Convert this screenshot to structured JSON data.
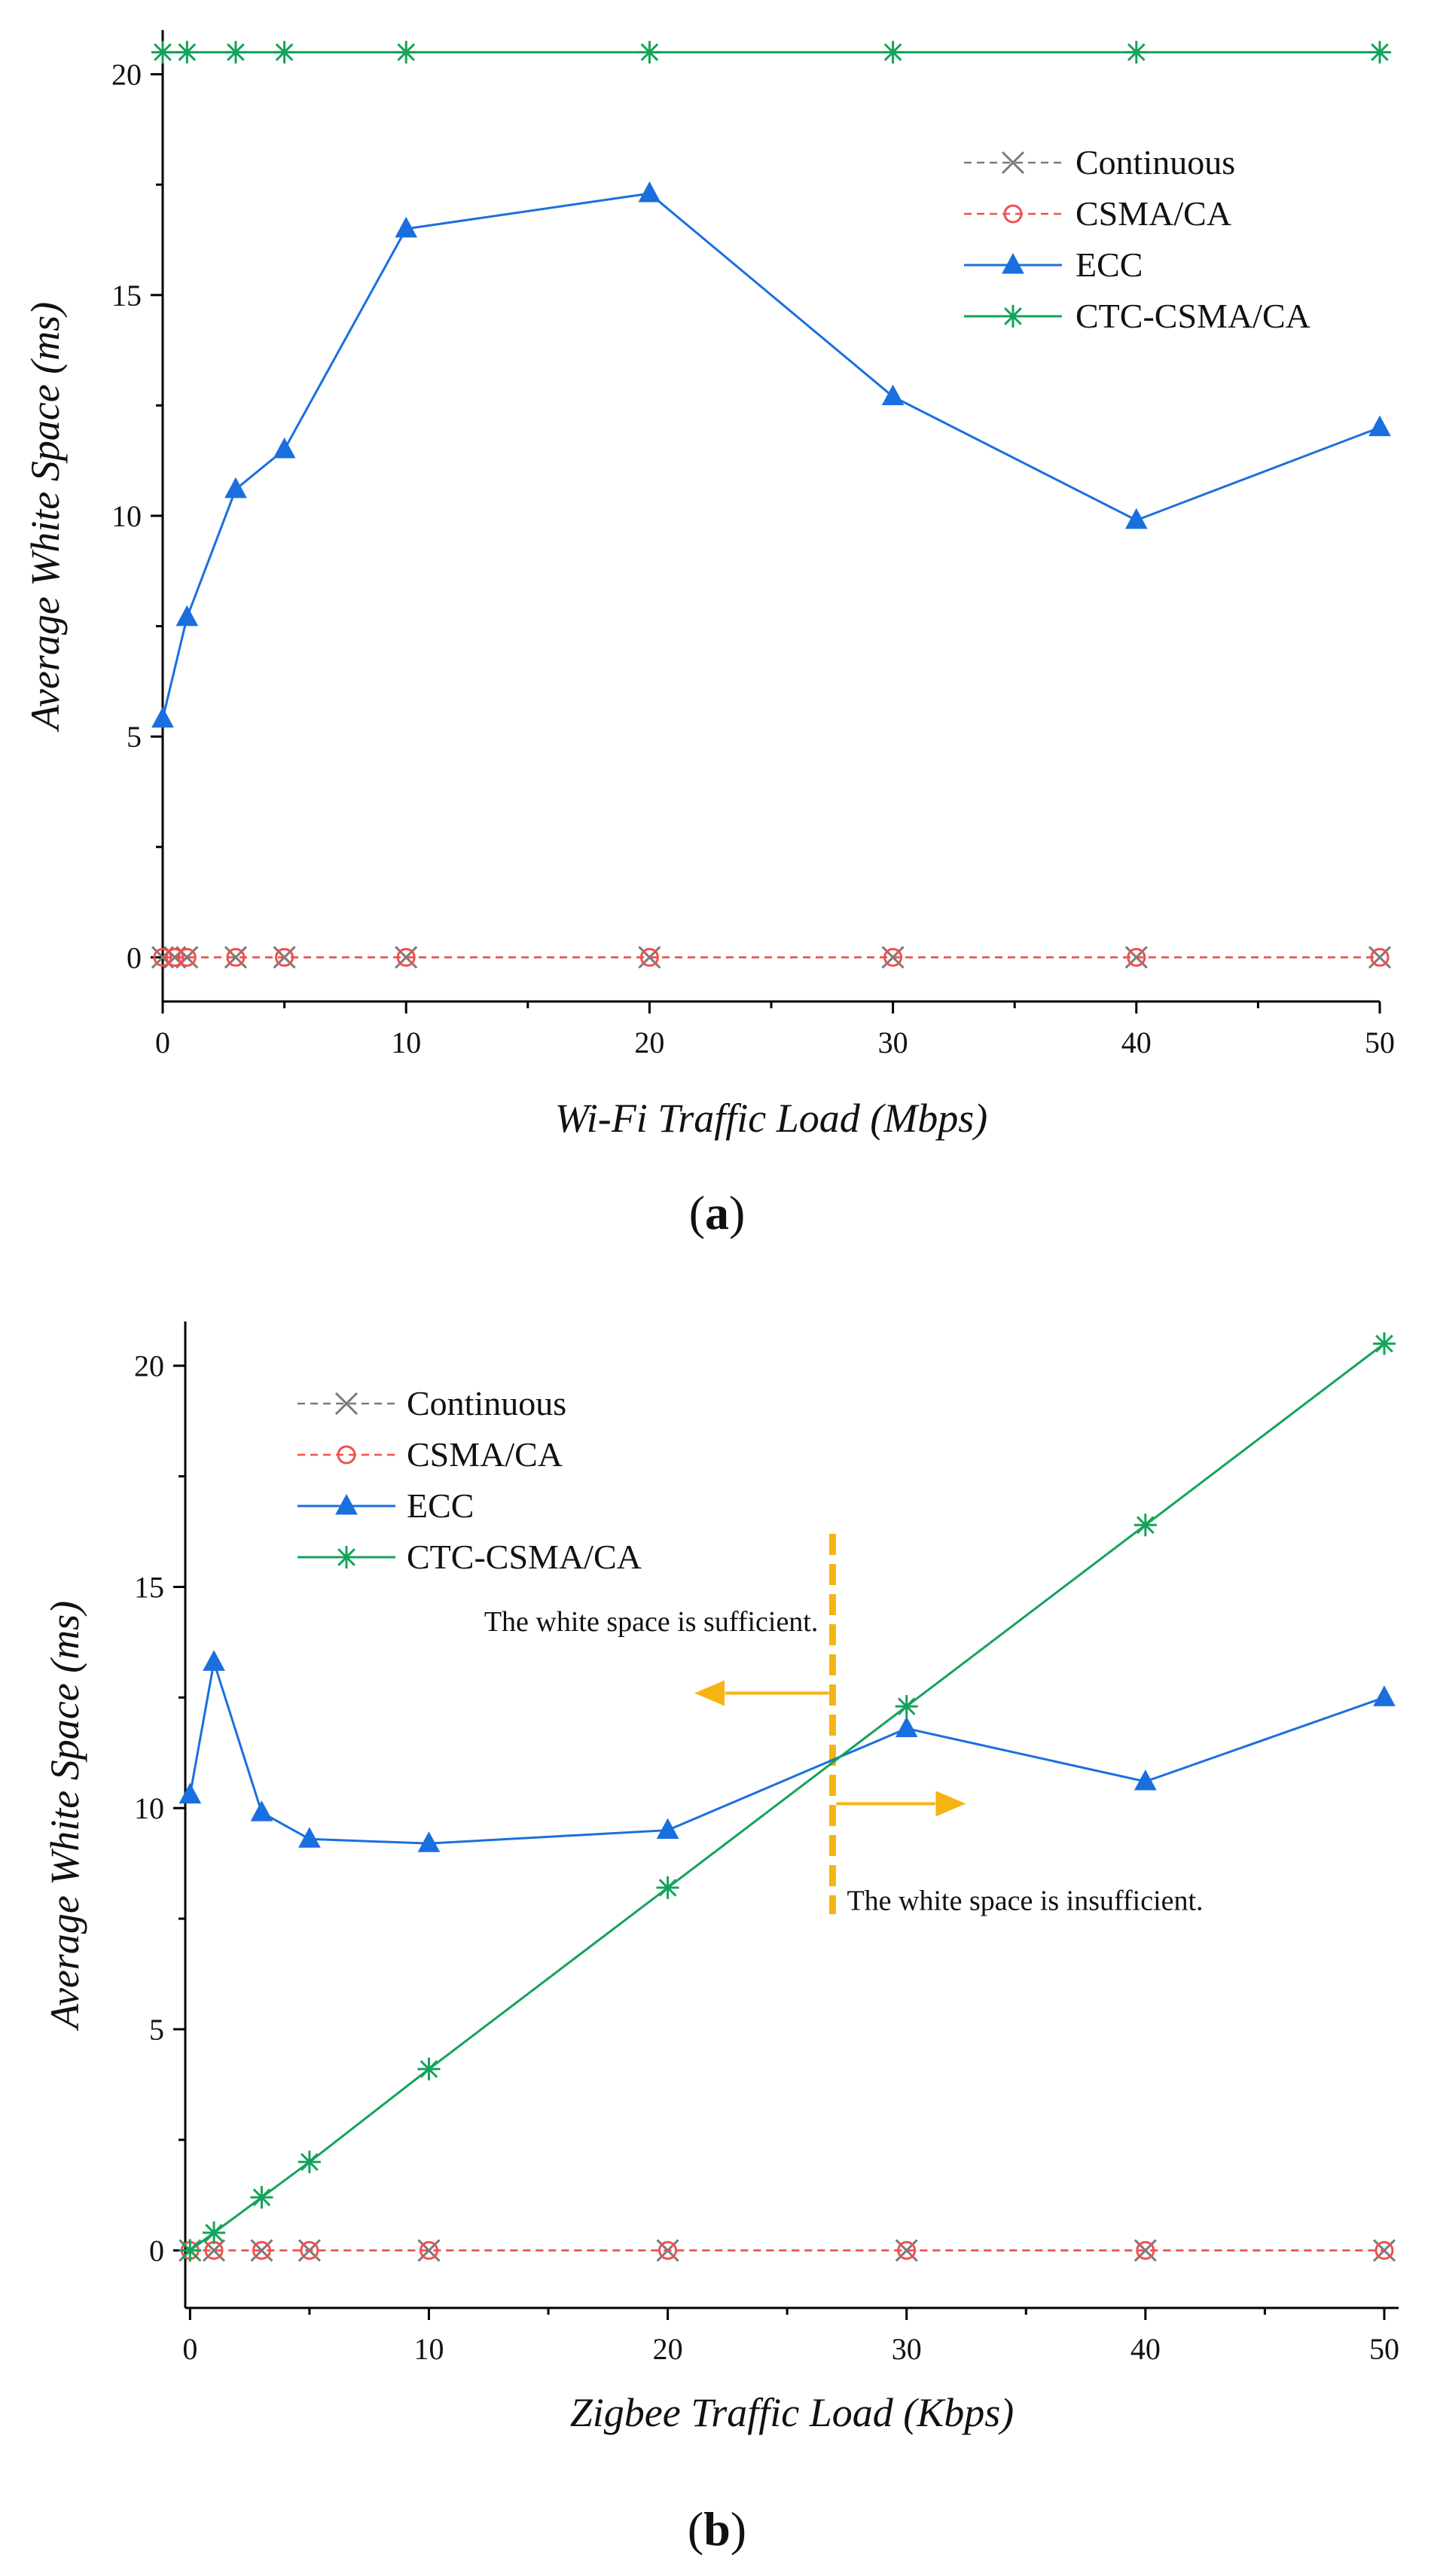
{
  "chart_data": [
    {
      "type": "line",
      "caption_letter": "a",
      "xlabel": "Wi-Fi Traffic Load (Mbps)",
      "ylabel": "Average White Space (ms)",
      "xlim": [
        0,
        50
      ],
      "ylim": [
        -1,
        21
      ],
      "xticks": [
        0,
        10,
        20,
        30,
        40,
        50
      ],
      "yticks": [
        0,
        5,
        10,
        15,
        20
      ],
      "legend_position": "top-right",
      "grid": false,
      "series": [
        {
          "name": "Continuous",
          "marker": "x",
          "color": "#7a7a7a",
          "dash": true,
          "x": [
            0,
            0.5,
            1,
            3,
            5,
            10,
            20,
            30,
            40,
            50
          ],
          "y": [
            0,
            0,
            0,
            0,
            0,
            0,
            0,
            0,
            0,
            0
          ]
        },
        {
          "name": "CSMA/CA",
          "marker": "circle",
          "color": "#f0504f",
          "dash": true,
          "x": [
            0,
            0.5,
            1,
            3,
            5,
            10,
            20,
            30,
            40,
            50
          ],
          "y": [
            0,
            0,
            0,
            0,
            0,
            0,
            0,
            0,
            0,
            0
          ]
        },
        {
          "name": "ECC",
          "marker": "triangle",
          "color": "#1a6fdf",
          "dash": false,
          "x": [
            0,
            1,
            3,
            5,
            10,
            20,
            30,
            40,
            50
          ],
          "y": [
            5.4,
            7.7,
            10.6,
            11.5,
            16.5,
            17.3,
            12.7,
            9.9,
            12.0
          ]
        },
        {
          "name": "CTC-CSMA/CA",
          "marker": "asterisk",
          "color": "#14a35a",
          "dash": false,
          "x": [
            0,
            1,
            3,
            5,
            10,
            20,
            30,
            40,
            50
          ],
          "y": [
            20.5,
            20.5,
            20.5,
            20.5,
            20.5,
            20.5,
            20.5,
            20.5,
            20.5
          ]
        }
      ]
    },
    {
      "type": "line",
      "caption_letter": "b",
      "xlabel": "Zigbee Traffic Load (Kbps)",
      "ylabel": "Average White Space (ms)",
      "xlim": [
        -0.2,
        50.6
      ],
      "ylim": [
        -1.3,
        21
      ],
      "xticks": [
        0,
        10,
        20,
        30,
        40,
        50
      ],
      "yticks": [
        0,
        5,
        10,
        15,
        20
      ],
      "legend_position": "top-left",
      "grid": false,
      "series": [
        {
          "name": "Continuous",
          "marker": "x",
          "color": "#7a7a7a",
          "dash": true,
          "x": [
            0,
            1,
            3,
            5,
            10,
            20,
            30,
            40,
            50
          ],
          "y": [
            0,
            0,
            0,
            0,
            0,
            0,
            0,
            0,
            0
          ]
        },
        {
          "name": "CSMA/CA",
          "marker": "circle",
          "color": "#f0504f",
          "dash": true,
          "x": [
            0,
            1,
            3,
            5,
            10,
            20,
            30,
            40,
            50
          ],
          "y": [
            0,
            0,
            0,
            0,
            0,
            0,
            0,
            0,
            0
          ]
        },
        {
          "name": "ECC",
          "marker": "triangle",
          "color": "#1a6fdf",
          "dash": false,
          "x": [
            0,
            1,
            3,
            5,
            10,
            20,
            30,
            40,
            50
          ],
          "y": [
            10.3,
            13.3,
            9.9,
            9.3,
            9.2,
            9.5,
            11.8,
            10.6,
            12.5
          ]
        },
        {
          "name": "CTC-CSMA/CA",
          "marker": "asterisk",
          "color": "#14a35a",
          "dash": false,
          "x": [
            0,
            1,
            3,
            5,
            10,
            20,
            30,
            40,
            50
          ],
          "y": [
            0,
            0.4,
            1.2,
            2.0,
            4.1,
            8.2,
            12.3,
            16.4,
            20.5
          ]
        }
      ],
      "annotations": {
        "threshold_x": 26.9,
        "threshold_color": "#f5b412",
        "left_text": "The white space is sufficient.",
        "right_text": "The white space is insufficient."
      }
    }
  ]
}
